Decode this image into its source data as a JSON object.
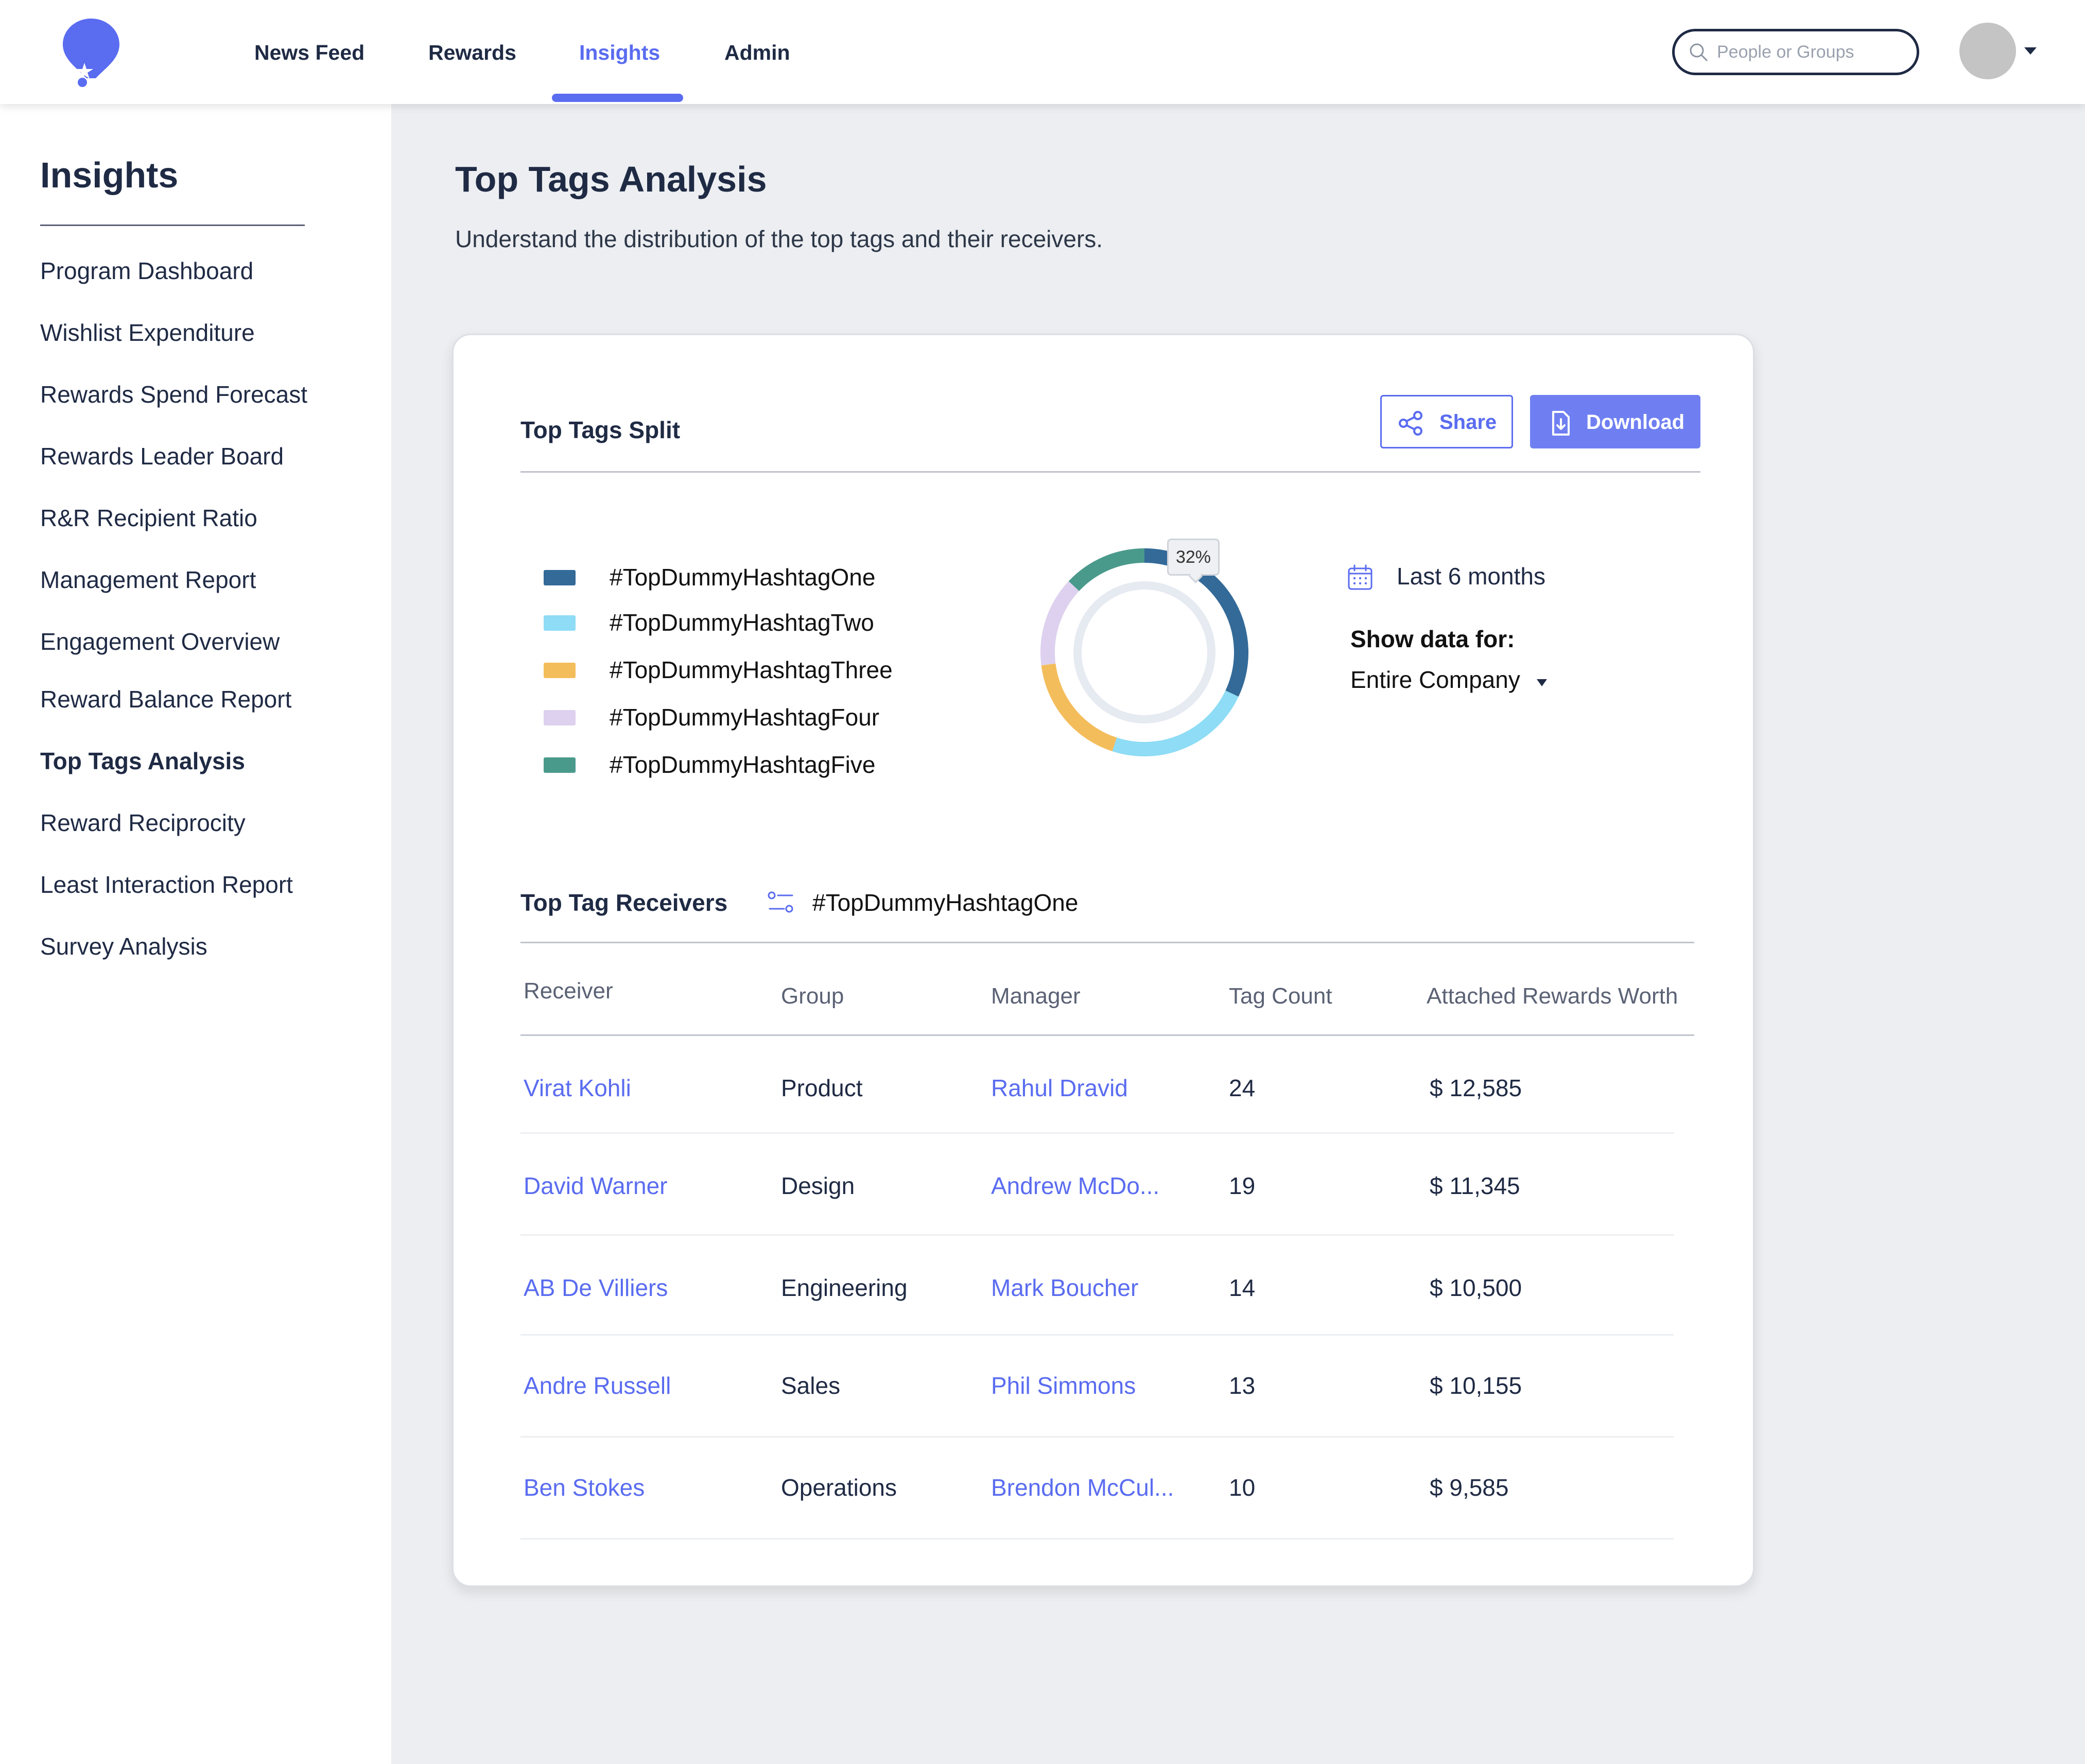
{
  "header": {
    "nav": [
      {
        "label": "News Feed"
      },
      {
        "label": "Rewards"
      },
      {
        "label": "Insights",
        "active": true
      },
      {
        "label": "Admin"
      }
    ],
    "search": {
      "placeholder": "People or Groups",
      "value": ""
    },
    "accent_color": "#5a6cf0"
  },
  "sidebar": {
    "title": "Insights",
    "items": [
      {
        "label": "Program Dashboard"
      },
      {
        "label": "Wishlist Expenditure"
      },
      {
        "label": "Rewards Spend Forecast"
      },
      {
        "label": "Rewards Leader Board"
      },
      {
        "label": "R&R Recipient Ratio"
      },
      {
        "label": "Management Report"
      },
      {
        "label": "Engagement Overview"
      },
      {
        "label": "Reward Balance Report"
      },
      {
        "label": "Top Tags Analysis",
        "active": true
      },
      {
        "label": "Reward Reciprocity"
      },
      {
        "label": "Least Interaction Report"
      },
      {
        "label": "Survey Analysis"
      }
    ]
  },
  "main": {
    "title": "Top Tags Analysis",
    "subtitle": "Understand the distribution of the top tags and their receivers.",
    "split": {
      "title": "Top Tags Split",
      "share_label": "Share",
      "download_label": "Download",
      "tooltip": "32%",
      "date_range": "Last 6 months",
      "show_data_label": "Show data for:",
      "scope": "Entire Company"
    },
    "receivers": {
      "title": "Top Tag Receivers",
      "selected_tag": "#TopDummyHashtagOne",
      "columns": [
        "Receiver",
        "Group",
        "Manager",
        "Tag Count",
        "Attached Rewards Worth"
      ],
      "rows": [
        {
          "receiver": "Virat Kohli",
          "group": "Product",
          "manager": "Rahul Dravid",
          "count": "24",
          "worth": "$ 12,585"
        },
        {
          "receiver": "David Warner",
          "group": "Design",
          "manager": "Andrew McDo...",
          "count": "19",
          "worth": "$ 11,345"
        },
        {
          "receiver": "AB De Villiers",
          "group": "Engineering",
          "manager": "Mark Boucher",
          "count": "14",
          "worth": "$ 10,500"
        },
        {
          "receiver": "Andre Russell",
          "group": "Sales",
          "manager": "Phil Simmons",
          "count": "13",
          "worth": "$ 10,155"
        },
        {
          "receiver": "Ben Stokes",
          "group": "Operations",
          "manager": "Brendon McCul...",
          "count": "10",
          "worth": "$ 9,585"
        }
      ]
    }
  },
  "chart_data": {
    "type": "pie",
    "variant": "donut",
    "categories": [
      "#TopDummyHashtagOne",
      "#TopDummyHashtagTwo",
      "#TopDummyHashtagThree",
      "#TopDummyHashtagFour",
      "#TopDummyHashtagFive"
    ],
    "values": [
      32,
      23,
      18,
      14,
      13
    ],
    "colors": [
      "#336a98",
      "#8edcf5",
      "#f4bd5b",
      "#ddd1ef",
      "#4a9a8c"
    ],
    "labels_shown": {
      "#TopDummyHashtagOne": "32%"
    },
    "legend": "left"
  }
}
